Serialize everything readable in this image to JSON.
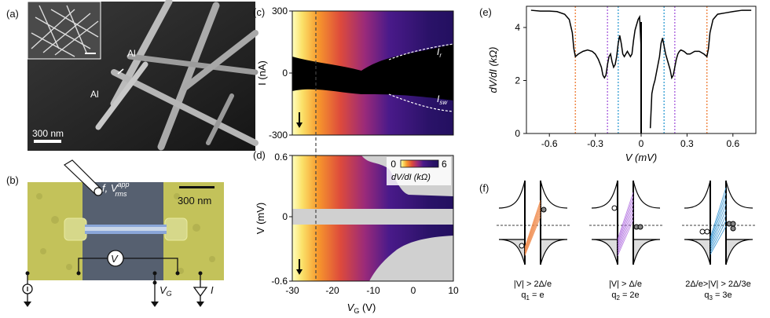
{
  "panels": {
    "a": {
      "label": "(a)",
      "al_top": "Al",
      "al_left": "Al",
      "scale": "300 nm"
    },
    "b": {
      "label": "(b)",
      "scale": "300 nm",
      "source": "f, V",
      "source_sup": "app",
      "source_sub": "rms",
      "meter": "V",
      "gate": "V",
      "gate_sub": "G",
      "current": "I"
    },
    "c": {
      "label": "(c)",
      "ylabel": "I (nA)",
      "yticks": [
        "300",
        "0",
        "-300"
      ],
      "ir": "I",
      "ir_sub": "r",
      "isw": "I",
      "isw_sub": "sw"
    },
    "d": {
      "label": "(d)",
      "ylabel": "V (mV)",
      "yticks": [
        "0.6",
        "0",
        "-0.6"
      ],
      "xticks": [
        "-30",
        "-20",
        "-10",
        "0",
        "10"
      ],
      "xlabel": "V",
      "xlabel_sub": "G",
      "xlabel_unit": " (V)",
      "cbar_min": "0",
      "cbar_max": "6",
      "cbar_label": "dV/dI (kΩ)"
    },
    "e": {
      "label": "(e)",
      "ylabel": "dV/dI (kΩ)",
      "xlabel": "V (mV)"
    },
    "f": {
      "label": "(f)",
      "captions": [
        {
          "line1": "|V| > 2Δ/e",
          "line2": "q",
          "sub": "1",
          "rest": " = e"
        },
        {
          "line1": "|V| > Δ/e",
          "line2": "q",
          "sub": "2",
          "rest": " = 2e"
        },
        {
          "line1": "2Δ/e>|V| > 2Δ/3e",
          "line2": "q",
          "sub": "3",
          "rest": " = 3e"
        }
      ]
    }
  },
  "chart_data": {
    "type": "line",
    "xlabel": "V (mV)",
    "ylabel": "dV/dI (kΩ)",
    "xlim": [
      -0.75,
      0.75
    ],
    "ylim": [
      0,
      4.8
    ],
    "xticks": [
      -0.6,
      -0.3,
      0,
      0.3,
      0.6
    ],
    "yticks": [
      0,
      2,
      4
    ],
    "grid": false,
    "x": [
      -0.72,
      -0.66,
      -0.6,
      -0.55,
      -0.5,
      -0.47,
      -0.45,
      -0.44,
      -0.43,
      -0.41,
      -0.38,
      -0.35,
      -0.32,
      -0.3,
      -0.28,
      -0.26,
      -0.25,
      -0.24,
      -0.23,
      -0.22,
      -0.21,
      -0.2,
      -0.19,
      -0.18,
      -0.17,
      -0.16,
      -0.15,
      -0.14,
      -0.13,
      -0.12,
      -0.11,
      -0.1,
      -0.09,
      -0.08,
      -0.07,
      -0.06,
      -0.05,
      -0.04,
      -0.03,
      -0.02,
      -0.01,
      0.0,
      0.0,
      0.06,
      0.07,
      0.08,
      0.09,
      0.1,
      0.11,
      0.12,
      0.13,
      0.14,
      0.15,
      0.16,
      0.17,
      0.18,
      0.19,
      0.2,
      0.21,
      0.22,
      0.23,
      0.24,
      0.25,
      0.26,
      0.28,
      0.3,
      0.32,
      0.35,
      0.38,
      0.41,
      0.43,
      0.44,
      0.45,
      0.47,
      0.5,
      0.55,
      0.6,
      0.66,
      0.72
    ],
    "y": [
      4.65,
      4.62,
      4.62,
      4.6,
      4.5,
      4.3,
      3.8,
      3.2,
      2.9,
      3.0,
      3.1,
      3.15,
      3.1,
      3.0,
      2.8,
      2.5,
      2.2,
      2.1,
      2.2,
      2.6,
      2.9,
      3.0,
      2.7,
      2.5,
      2.6,
      2.9,
      3.4,
      3.7,
      3.4,
      3.0,
      2.9,
      3.0,
      3.1,
      3.0,
      2.9,
      3.0,
      3.5,
      3.9,
      4.1,
      4.3,
      4.4,
      3.2,
      0,
      0.2,
      1.5,
      1.8,
      2.0,
      2.3,
      2.6,
      2.9,
      3.4,
      3.6,
      3.3,
      3.0,
      2.8,
      2.6,
      2.4,
      2.1,
      2.2,
      2.5,
      2.8,
      3.0,
      3.1,
      3.15,
      3.1,
      3.0,
      3.0,
      3.1,
      3.1,
      3.0,
      2.9,
      3.2,
      3.8,
      4.3,
      4.5,
      4.55,
      4.6,
      4.65,
      4.65
    ],
    "dotted_lines": [
      {
        "x": -0.43,
        "color": "#f08a4b"
      },
      {
        "x": -0.22,
        "color": "#b06ee0"
      },
      {
        "x": -0.15,
        "color": "#4aa8d8"
      },
      {
        "x": 0.15,
        "color": "#4aa8d8"
      },
      {
        "x": 0.22,
        "color": "#b06ee0"
      },
      {
        "x": 0.43,
        "color": "#f08a4b"
      }
    ]
  }
}
